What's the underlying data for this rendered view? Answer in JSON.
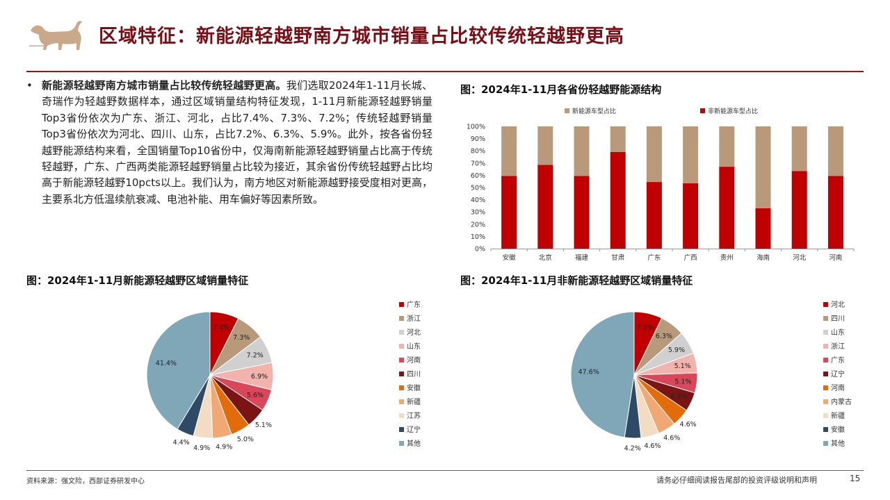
{
  "header": {
    "title": "区域特征：新能源轻越野南方城市销量占比较传统轻越野更高"
  },
  "summary": {
    "bullet": "•",
    "lead": "新能源轻越野南方城市销量占比较传统轻越野更高。",
    "body": "我们选取2024年1-11月长城、奇瑞作为轻越野数据样本，通过区域销量结构特征发现，1-11月新能源轻越野销量Top3省份依次为广东、浙江、河北，占比7.4%、7.3%、7.2%；传统轻越野销量Top3省份依次为河北、四川、山东，占比7.2%、6.3%、5.9%。此外，按各省份轻越野能源结构来看，全国销量Top10省份中，仅海南新能源轻越野销量占比高于传统轻越野，广东、广西两类能源轻越野销量占比较为接近，其余省份传统轻越野占比均高于新能源轻越野10pcts以上。我们认为，南方地区对新能源越野接受度相对更高，主要系北方低温续航衰减、电池补能、用车偏好等因素所致。"
  },
  "chart_data": [
    {
      "type": "bar",
      "stacked": true,
      "title": "图：2024年1-11月各省份轻越野能源结构",
      "categories": [
        "安徽",
        "北京",
        "福建",
        "甘肃",
        "广东",
        "广西",
        "贵州",
        "海南",
        "河北",
        "河南"
      ],
      "series": [
        {
          "name": "非新能源车型占比",
          "color": "#c00000",
          "values": [
            59.5,
            68.5,
            59.5,
            79,
            54.5,
            53.5,
            67,
            33,
            63.5,
            59.5
          ]
        },
        {
          "name": "新能源车型占比",
          "color": "#b89a7a",
          "values": [
            40.5,
            31.5,
            40.5,
            21,
            45.5,
            46.5,
            33,
            67,
            36.5,
            40.5
          ]
        }
      ],
      "legend_order": [
        "新能源车型占比",
        "非新能源车型占比"
      ],
      "legend": "top",
      "ylim": [
        0,
        100
      ],
      "yticks": [
        "0%",
        "10%",
        "20%",
        "30%",
        "40%",
        "50%",
        "60%",
        "70%",
        "80%",
        "90%",
        "100%"
      ],
      "grid": false
    },
    {
      "type": "pie",
      "title": "图：2024年1-11月新能源轻越野区域销量特征",
      "labels": [
        "广东",
        "浙江",
        "河北",
        "山东",
        "河南",
        "四川",
        "安徽",
        "新疆",
        "江苏",
        "辽宁",
        "其他"
      ],
      "values": [
        7.4,
        7.3,
        7.2,
        6.9,
        5.6,
        5.1,
        5.0,
        4.9,
        4.9,
        4.4,
        41.4
      ],
      "display": [
        "7.4%",
        "7.3%",
        "7.2%",
        "6.9%",
        "5.6%",
        "5.1%",
        "5.0%",
        "4.9%",
        "4.9%",
        "4.4%",
        "41.4%"
      ],
      "colors": [
        "#c00000",
        "#b89a7a",
        "#d0d0d0",
        "#f2b3ad",
        "#d9475a",
        "#7b1515",
        "#e36c0a",
        "#f0a875",
        "#f3dcc4",
        "#2e4a66",
        "#7fa7b8"
      ],
      "legend": "right"
    },
    {
      "type": "pie",
      "title": "图：2024年1-11月非新能源轻越野区域销量特征",
      "labels": [
        "河北",
        "四川",
        "山东",
        "浙江",
        "广东",
        "辽宁",
        "河南",
        "内蒙古",
        "新疆",
        "安徽",
        "其他"
      ],
      "values": [
        7.2,
        6.3,
        5.9,
        5.1,
        5.1,
        4.9,
        4.6,
        4.6,
        4.6,
        4.2,
        47.6
      ],
      "display": [
        "7.2%",
        "6.3%",
        "5.9%",
        "5.1%",
        "5.1%",
        "4.9%",
        "4.6%",
        "4.6%",
        "4.6%",
        "4.2%",
        "47.6%"
      ],
      "colors": [
        "#c00000",
        "#b89a7a",
        "#d0d0d0",
        "#f2b3ad",
        "#d9475a",
        "#7b1515",
        "#e36c0a",
        "#f0a875",
        "#f3dcc4",
        "#2e4a66",
        "#7fa7b8"
      ],
      "legend": "right"
    }
  ],
  "footer": {
    "source": "资料来源：强文险，西部证券研发中心",
    "disclaimer": "请务必仔细阅读报告尾部的投资评级说明和声明",
    "page": "15"
  }
}
